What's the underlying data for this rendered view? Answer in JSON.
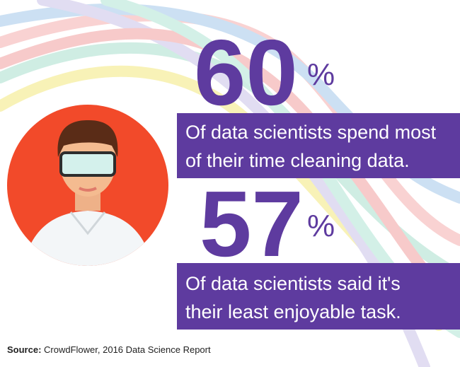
{
  "stats": [
    {
      "number": "60",
      "unit": "%",
      "description": [
        "Of data scientists spend most",
        "of their time cleaning data."
      ]
    },
    {
      "number": "57",
      "unit": "%",
      "description": [
        "Of data scientists said it's",
        "their least enjoyable task."
      ]
    }
  ],
  "source": {
    "label": "Source:",
    "text": "CrowdFlower, 2016 Data Science Report"
  }
}
